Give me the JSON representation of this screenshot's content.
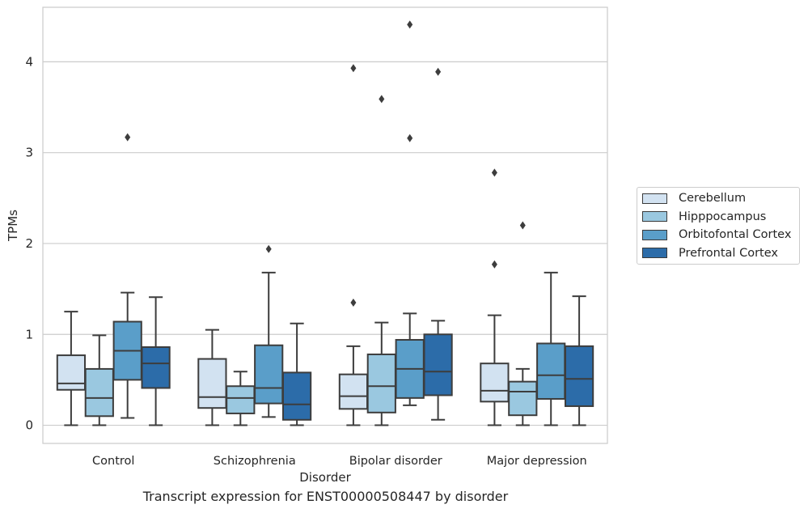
{
  "caption": "Transcript expression for ENST00000508447 by disorder",
  "chart_data": {
    "type": "boxplot",
    "xlabel": "Disorder",
    "ylabel": "TPMs",
    "ylim": [
      -0.2,
      4.6
    ],
    "yticks": [
      0,
      1,
      2,
      3,
      4
    ],
    "grid": "horizontal",
    "legend_position": "right",
    "categories": [
      "Control",
      "Schizophrenia",
      "Bipolar disorder",
      "Major depression"
    ],
    "series": [
      {
        "name": "Cerebellum",
        "color": "#d2e2f1",
        "boxes": [
          {
            "min": 0.0,
            "q1": 0.39,
            "median": 0.46,
            "q3": 0.77,
            "max": 1.25,
            "outliers": []
          },
          {
            "min": 0.0,
            "q1": 0.19,
            "median": 0.31,
            "q3": 0.73,
            "max": 1.05,
            "outliers": []
          },
          {
            "min": 0.0,
            "q1": 0.18,
            "median": 0.32,
            "q3": 0.56,
            "max": 0.87,
            "outliers": [
              1.35,
              3.93
            ]
          },
          {
            "min": 0.0,
            "q1": 0.26,
            "median": 0.38,
            "q3": 0.68,
            "max": 1.21,
            "outliers": [
              1.77,
              2.78
            ]
          }
        ]
      },
      {
        "name": "Hipppocampus",
        "color": "#9ac8e0",
        "boxes": [
          {
            "min": 0.0,
            "q1": 0.1,
            "median": 0.3,
            "q3": 0.62,
            "max": 0.99,
            "outliers": []
          },
          {
            "min": 0.0,
            "q1": 0.13,
            "median": 0.3,
            "q3": 0.43,
            "max": 0.59,
            "outliers": []
          },
          {
            "min": 0.0,
            "q1": 0.14,
            "median": 0.43,
            "q3": 0.78,
            "max": 1.13,
            "outliers": [
              3.59
            ]
          },
          {
            "min": 0.0,
            "q1": 0.11,
            "median": 0.37,
            "q3": 0.48,
            "max": 0.62,
            "outliers": [
              2.2
            ]
          }
        ]
      },
      {
        "name": "Orbitofontal Cortex",
        "color": "#5a9ec9",
        "boxes": [
          {
            "min": 0.08,
            "q1": 0.5,
            "median": 0.82,
            "q3": 1.14,
            "max": 1.46,
            "outliers": [
              3.17
            ]
          },
          {
            "min": 0.09,
            "q1": 0.24,
            "median": 0.41,
            "q3": 0.88,
            "max": 1.68,
            "outliers": [
              1.94
            ]
          },
          {
            "min": 0.22,
            "q1": 0.3,
            "median": 0.62,
            "q3": 0.94,
            "max": 1.23,
            "outliers": [
              3.16,
              4.41
            ]
          },
          {
            "min": 0.0,
            "q1": 0.29,
            "median": 0.55,
            "q3": 0.9,
            "max": 1.68,
            "outliers": []
          }
        ]
      },
      {
        "name": "Prefrontal Cortex",
        "color": "#2c6ca9",
        "boxes": [
          {
            "min": 0.0,
            "q1": 0.41,
            "median": 0.68,
            "q3": 0.86,
            "max": 1.41,
            "outliers": []
          },
          {
            "min": 0.0,
            "q1": 0.06,
            "median": 0.23,
            "q3": 0.58,
            "max": 1.12,
            "outliers": []
          },
          {
            "min": 0.06,
            "q1": 0.33,
            "median": 0.59,
            "q3": 1.0,
            "max": 1.15,
            "outliers": [
              3.89
            ]
          },
          {
            "min": 0.0,
            "q1": 0.21,
            "median": 0.51,
            "q3": 0.87,
            "max": 1.42,
            "outliers": []
          }
        ]
      }
    ]
  }
}
